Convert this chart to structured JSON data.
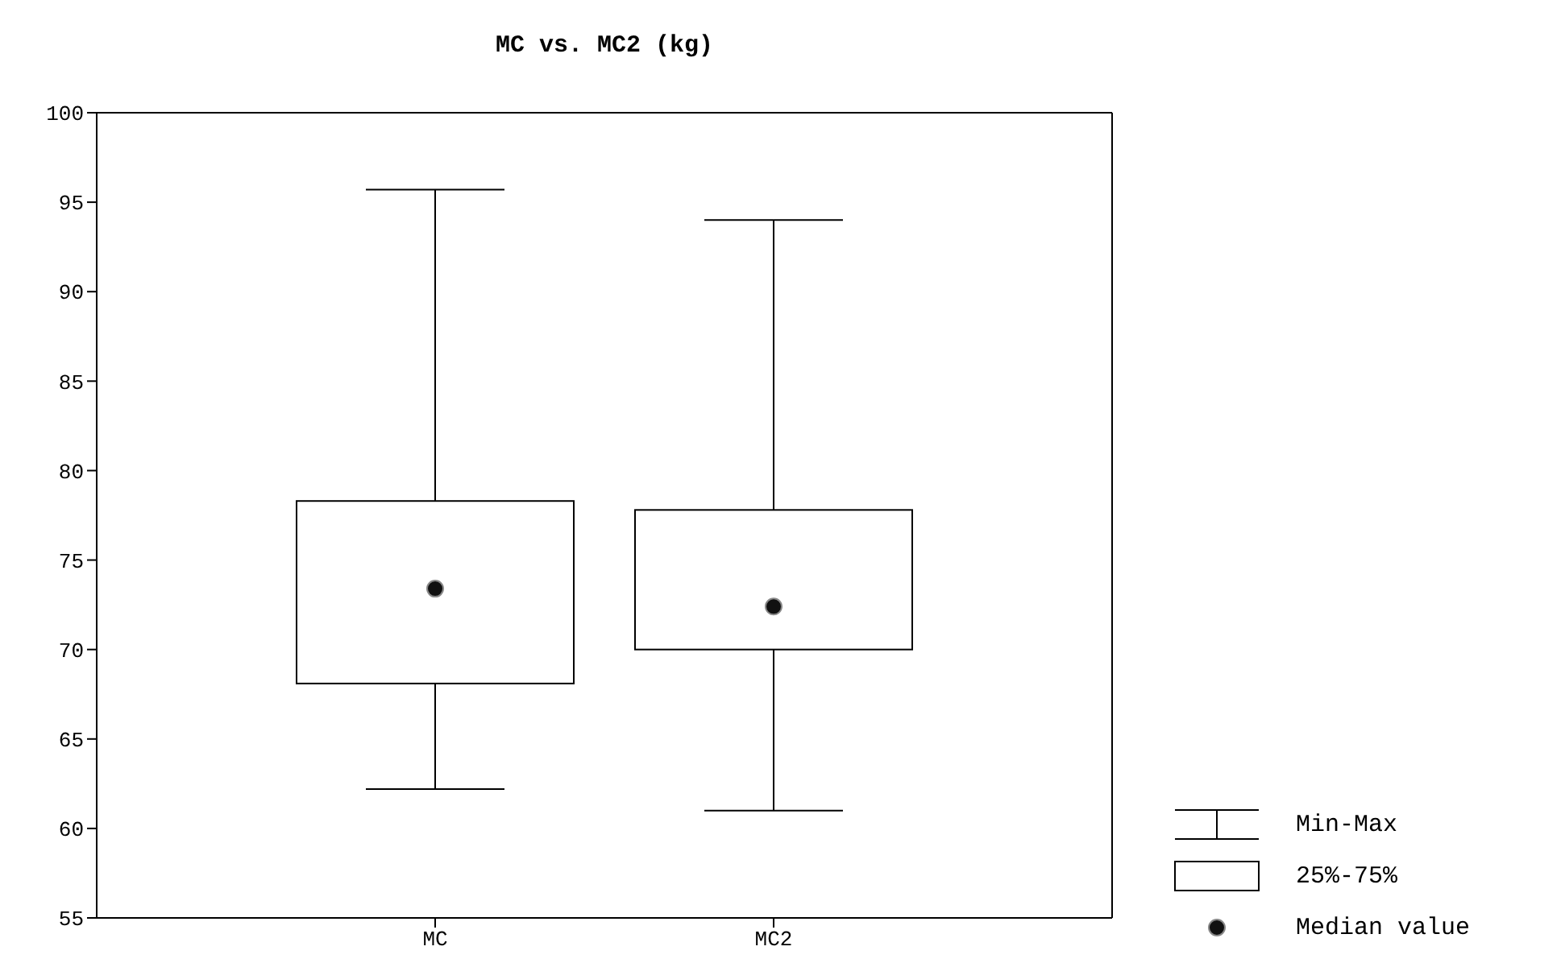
{
  "chart_data": {
    "type": "box",
    "title": "MC vs. MC2 (kg)",
    "categories": [
      "MC",
      "MC2"
    ],
    "boxes": [
      {
        "low": 62.2,
        "q1": 68.1,
        "median": 73.4,
        "q3": 78.3,
        "high": 95.7
      },
      {
        "low": 61.0,
        "q1": 70.0,
        "median": 72.4,
        "q3": 77.8,
        "high": 94.0
      }
    ],
    "ylim": [
      55,
      100
    ],
    "yticks": [
      55,
      60,
      65,
      70,
      75,
      80,
      85,
      90,
      95,
      100
    ],
    "annotations": [
      "Min-Max",
      "25%-75%",
      "Median value"
    ]
  }
}
